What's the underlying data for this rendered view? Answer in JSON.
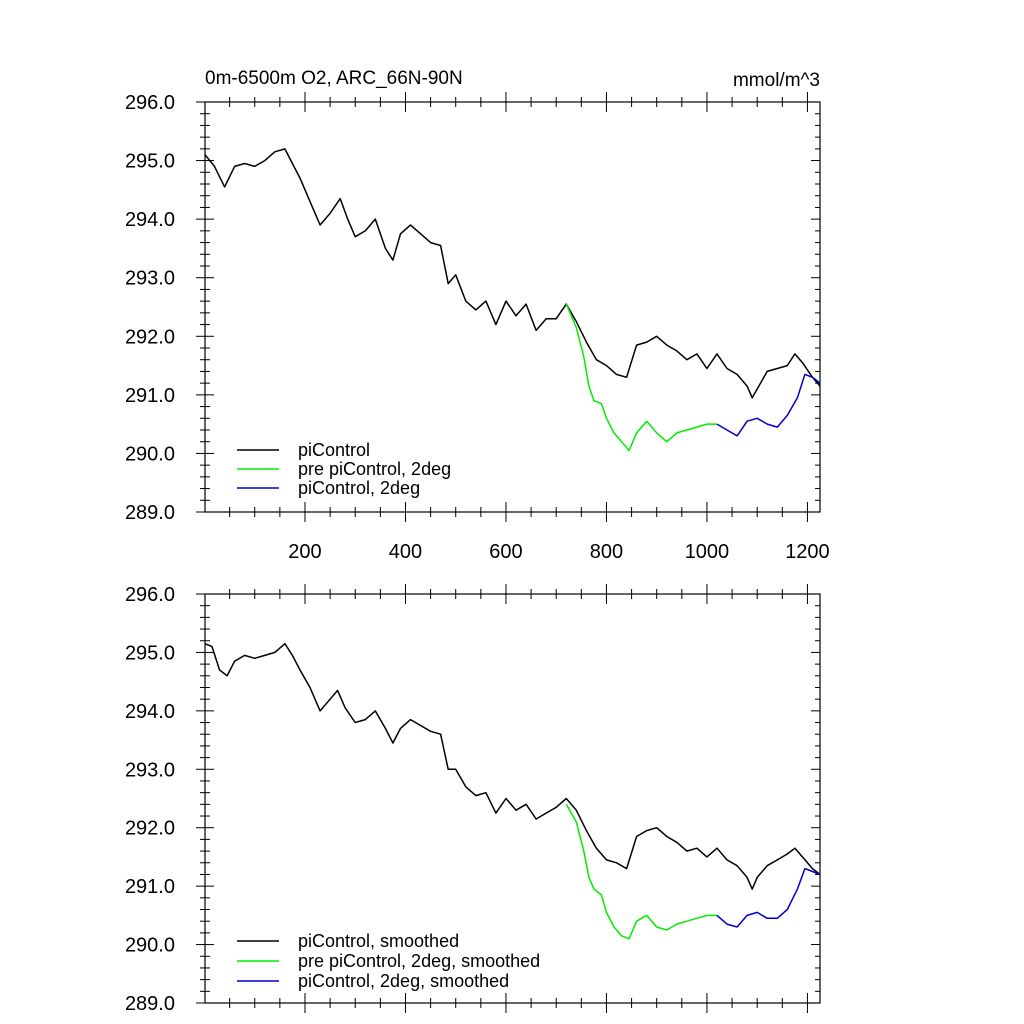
{
  "chart_data": [
    {
      "type": "line",
      "title": "0m-6500m O2, ARC_66N-90N",
      "units": "mmol/m^3",
      "xlim": [
        1,
        1225
      ],
      "ylim": [
        289.0,
        296.0
      ],
      "x_ticks": [
        200,
        400,
        600,
        800,
        1000,
        1200
      ],
      "x_tick_labels": [
        "200",
        "400",
        "600",
        "800",
        "1000",
        "1200"
      ],
      "y_ticks": [
        289.0,
        290.0,
        291.0,
        292.0,
        293.0,
        294.0,
        295.0,
        296.0
      ],
      "y_tick_labels": [
        "289.0",
        "290.0",
        "291.0",
        "292.0",
        "293.0",
        "294.0",
        "295.0",
        "296.0"
      ],
      "legend_position": "bottom-left",
      "series": [
        {
          "name": "piControl",
          "color": "#000000",
          "points": [
            [
              1,
              295.1
            ],
            [
              20,
              294.9
            ],
            [
              40,
              294.55
            ],
            [
              60,
              294.9
            ],
            [
              80,
              294.95
            ],
            [
              100,
              294.9
            ],
            [
              120,
              295.0
            ],
            [
              140,
              295.15
            ],
            [
              160,
              295.2
            ],
            [
              175,
              294.95
            ],
            [
              190,
              294.7
            ],
            [
              210,
              294.3
            ],
            [
              230,
              293.9
            ],
            [
              250,
              294.1
            ],
            [
              270,
              294.35
            ],
            [
              285,
              294.0
            ],
            [
              300,
              293.7
            ],
            [
              320,
              293.8
            ],
            [
              340,
              294.0
            ],
            [
              360,
              293.5
            ],
            [
              375,
              293.3
            ],
            [
              390,
              293.75
            ],
            [
              410,
              293.9
            ],
            [
              430,
              293.75
            ],
            [
              450,
              293.6
            ],
            [
              470,
              293.55
            ],
            [
              485,
              292.9
            ],
            [
              500,
              293.05
            ],
            [
              520,
              292.6
            ],
            [
              540,
              292.45
            ],
            [
              560,
              292.6
            ],
            [
              580,
              292.2
            ],
            [
              600,
              292.6
            ],
            [
              620,
              292.35
            ],
            [
              640,
              292.55
            ],
            [
              660,
              292.1
            ],
            [
              680,
              292.3
            ],
            [
              700,
              292.3
            ],
            [
              720,
              292.55
            ],
            [
              740,
              292.25
            ],
            [
              760,
              291.9
            ],
            [
              780,
              291.6
            ],
            [
              800,
              291.5
            ],
            [
              820,
              291.35
            ],
            [
              840,
              291.3
            ],
            [
              860,
              291.85
            ],
            [
              880,
              291.9
            ],
            [
              900,
              292.0
            ],
            [
              920,
              291.85
            ],
            [
              940,
              291.75
            ],
            [
              960,
              291.6
            ],
            [
              980,
              291.7
            ],
            [
              1000,
              291.45
            ],
            [
              1020,
              291.7
            ],
            [
              1040,
              291.45
            ],
            [
              1060,
              291.35
            ],
            [
              1080,
              291.15
            ],
            [
              1090,
              290.95
            ],
            [
              1100,
              291.1
            ],
            [
              1120,
              291.4
            ],
            [
              1140,
              291.45
            ],
            [
              1160,
              291.5
            ],
            [
              1175,
              291.7
            ],
            [
              1190,
              291.55
            ],
            [
              1210,
              291.3
            ],
            [
              1225,
              291.15
            ]
          ]
        },
        {
          "name": "pre piControl, 2deg",
          "color": "#00ee00",
          "points": [
            [
              720,
              292.55
            ],
            [
              740,
              292.15
            ],
            [
              755,
              291.65
            ],
            [
              765,
              291.15
            ],
            [
              775,
              290.9
            ],
            [
              790,
              290.85
            ],
            [
              800,
              290.6
            ],
            [
              815,
              290.35
            ],
            [
              830,
              290.2
            ],
            [
              845,
              290.05
            ],
            [
              860,
              290.35
            ],
            [
              880,
              290.55
            ],
            [
              900,
              290.35
            ],
            [
              920,
              290.2
            ],
            [
              940,
              290.35
            ],
            [
              960,
              290.4
            ],
            [
              980,
              290.45
            ],
            [
              1000,
              290.5
            ],
            [
              1020,
              290.5
            ]
          ]
        },
        {
          "name": "piControl, 2deg",
          "color": "#0000cc",
          "points": [
            [
              1020,
              290.5
            ],
            [
              1040,
              290.4
            ],
            [
              1060,
              290.3
            ],
            [
              1080,
              290.55
            ],
            [
              1100,
              290.6
            ],
            [
              1120,
              290.5
            ],
            [
              1140,
              290.45
            ],
            [
              1160,
              290.65
            ],
            [
              1180,
              290.95
            ],
            [
              1195,
              291.35
            ],
            [
              1210,
              291.3
            ],
            [
              1225,
              291.2
            ]
          ]
        }
      ]
    },
    {
      "type": "line",
      "title": "",
      "xlim": [
        1,
        1225
      ],
      "ylim": [
        289.0,
        296.0
      ],
      "x_ticks": [
        200,
        400,
        600,
        800,
        1000,
        1200
      ],
      "y_ticks": [
        289.0,
        290.0,
        291.0,
        292.0,
        293.0,
        294.0,
        295.0,
        296.0
      ],
      "y_tick_labels": [
        "289.0",
        "290.0",
        "291.0",
        "292.0",
        "293.0",
        "294.0",
        "295.0",
        "296.0"
      ],
      "legend_position": "bottom-left",
      "series": [
        {
          "name": "piControl, smoothed",
          "color": "#000000",
          "points": [
            [
              1,
              295.15
            ],
            [
              15,
              295.1
            ],
            [
              30,
              294.7
            ],
            [
              45,
              294.6
            ],
            [
              60,
              294.85
            ],
            [
              80,
              294.95
            ],
            [
              100,
              294.9
            ],
            [
              120,
              294.95
            ],
            [
              140,
              295.0
            ],
            [
              160,
              295.15
            ],
            [
              175,
              294.95
            ],
            [
              190,
              294.7
            ],
            [
              210,
              294.4
            ],
            [
              230,
              294.0
            ],
            [
              250,
              294.2
            ],
            [
              265,
              294.35
            ],
            [
              280,
              294.05
            ],
            [
              300,
              293.8
            ],
            [
              320,
              293.85
            ],
            [
              340,
              294.0
            ],
            [
              360,
              293.7
            ],
            [
              375,
              293.45
            ],
            [
              390,
              293.7
            ],
            [
              410,
              293.85
            ],
            [
              430,
              293.75
            ],
            [
              450,
              293.65
            ],
            [
              470,
              293.6
            ],
            [
              485,
              293.0
            ],
            [
              500,
              293.0
            ],
            [
              520,
              292.7
            ],
            [
              540,
              292.55
            ],
            [
              560,
              292.6
            ],
            [
              580,
              292.25
            ],
            [
              600,
              292.5
            ],
            [
              620,
              292.3
            ],
            [
              640,
              292.4
            ],
            [
              660,
              292.15
            ],
            [
              680,
              292.25
            ],
            [
              700,
              292.35
            ],
            [
              720,
              292.5
            ],
            [
              740,
              292.3
            ],
            [
              760,
              291.95
            ],
            [
              780,
              291.65
            ],
            [
              800,
              291.45
            ],
            [
              820,
              291.4
            ],
            [
              840,
              291.3
            ],
            [
              860,
              291.85
            ],
            [
              880,
              291.95
            ],
            [
              900,
              292.0
            ],
            [
              920,
              291.85
            ],
            [
              940,
              291.75
            ],
            [
              960,
              291.6
            ],
            [
              980,
              291.65
            ],
            [
              1000,
              291.5
            ],
            [
              1020,
              291.65
            ],
            [
              1040,
              291.45
            ],
            [
              1060,
              291.35
            ],
            [
              1080,
              291.15
            ],
            [
              1090,
              290.95
            ],
            [
              1100,
              291.15
            ],
            [
              1120,
              291.35
            ],
            [
              1140,
              291.45
            ],
            [
              1160,
              291.55
            ],
            [
              1175,
              291.65
            ],
            [
              1190,
              291.5
            ],
            [
              1210,
              291.3
            ],
            [
              1225,
              291.2
            ]
          ]
        },
        {
          "name": "pre piControl, 2deg, smoothed",
          "color": "#00ee00",
          "points": [
            [
              720,
              292.4
            ],
            [
              740,
              292.1
            ],
            [
              755,
              291.6
            ],
            [
              765,
              291.15
            ],
            [
              775,
              290.95
            ],
            [
              790,
              290.85
            ],
            [
              800,
              290.55
            ],
            [
              815,
              290.3
            ],
            [
              830,
              290.15
            ],
            [
              845,
              290.1
            ],
            [
              860,
              290.4
            ],
            [
              880,
              290.5
            ],
            [
              900,
              290.3
            ],
            [
              920,
              290.25
            ],
            [
              940,
              290.35
            ],
            [
              960,
              290.4
            ],
            [
              980,
              290.45
            ],
            [
              1000,
              290.5
            ],
            [
              1020,
              290.5
            ]
          ]
        },
        {
          "name": "piControl, 2deg, smoothed",
          "color": "#0000cc",
          "points": [
            [
              1020,
              290.5
            ],
            [
              1040,
              290.35
            ],
            [
              1060,
              290.3
            ],
            [
              1080,
              290.5
            ],
            [
              1100,
              290.55
            ],
            [
              1120,
              290.45
            ],
            [
              1140,
              290.45
            ],
            [
              1160,
              290.6
            ],
            [
              1180,
              290.95
            ],
            [
              1195,
              291.3
            ],
            [
              1210,
              291.25
            ],
            [
              1225,
              291.2
            ]
          ]
        }
      ]
    }
  ]
}
